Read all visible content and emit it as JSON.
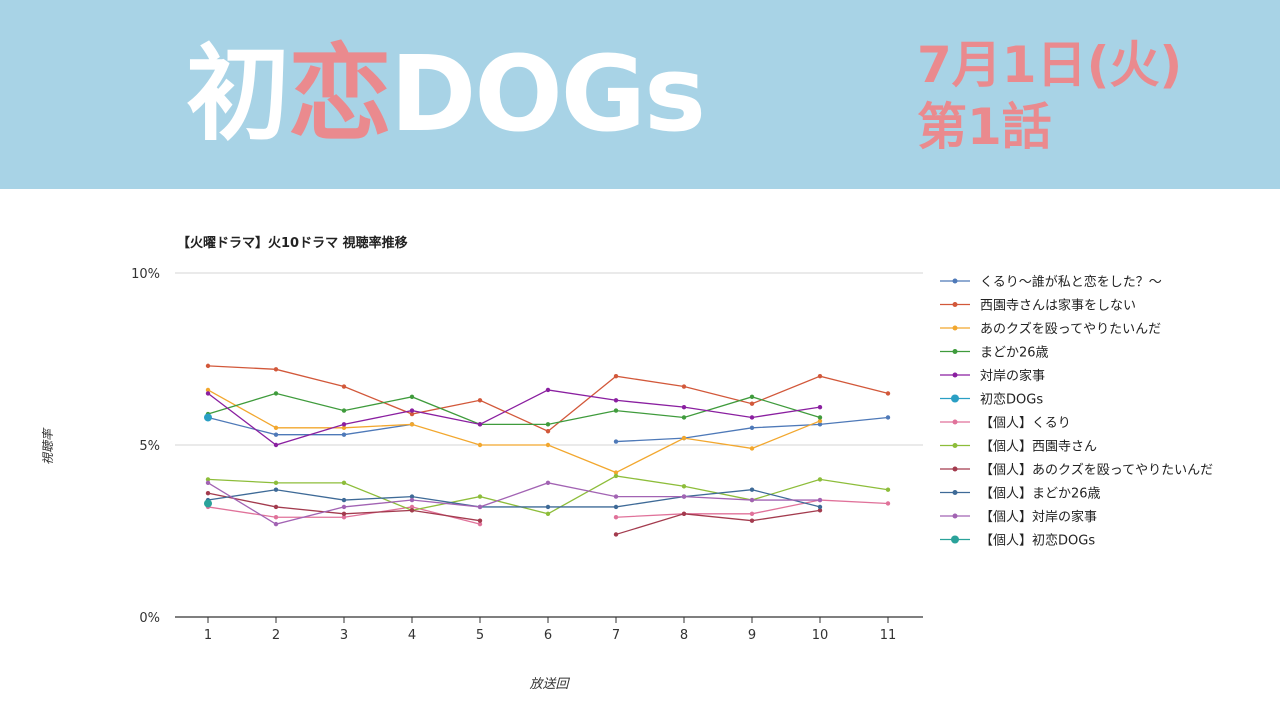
{
  "header": {
    "title_part1": "初",
    "title_part2": "恋",
    "title_part3": "DOGs",
    "date": "7月1日(火)",
    "episode": "第1話",
    "colors": {
      "banner": "#a8d3e6",
      "accent": "#ea8a8e",
      "title": "#ffffff"
    }
  },
  "chart_data": {
    "type": "line",
    "title": "【火曜ドラマ】火10ドラマ 視聴率推移",
    "xlabel": "放送回",
    "ylabel": "視聴率",
    "categories": [
      1,
      2,
      3,
      4,
      5,
      6,
      7,
      8,
      9,
      10,
      11
    ],
    "ylim": [
      0,
      10
    ],
    "yticks": [
      "0%",
      "5%",
      "10%"
    ],
    "grid": true,
    "legend_position": "right",
    "series": [
      {
        "name": "くるり〜誰が私と恋をした？〜",
        "color": "#4e79b8",
        "values": [
          5.8,
          5.3,
          5.3,
          5.6,
          null,
          null,
          5.1,
          5.2,
          5.5,
          5.6,
          5.8
        ]
      },
      {
        "name": "西園寺さんは家事をしない",
        "color": "#d2583a",
        "values": [
          7.3,
          7.2,
          6.7,
          5.9,
          6.3,
          5.4,
          7.0,
          6.7,
          6.2,
          7.0,
          6.5
        ]
      },
      {
        "name": "あのクズを殴ってやりたいんだ",
        "color": "#f2a72e",
        "values": [
          6.6,
          5.5,
          5.5,
          5.6,
          5.0,
          5.0,
          4.2,
          5.2,
          4.9,
          5.7,
          null
        ]
      },
      {
        "name": "まどか26歳",
        "color": "#3f9b3c",
        "values": [
          5.9,
          6.5,
          6.0,
          6.4,
          5.6,
          5.6,
          6.0,
          5.8,
          6.4,
          5.8,
          null
        ]
      },
      {
        "name": "対岸の家事",
        "color": "#8a1fa0",
        "values": [
          6.5,
          5.0,
          5.6,
          6.0,
          5.6,
          6.6,
          6.3,
          6.1,
          5.8,
          6.1,
          null
        ]
      },
      {
        "name": "初恋DOGs",
        "color": "#2a9fc4",
        "values": [
          5.8,
          null,
          null,
          null,
          null,
          null,
          null,
          null,
          null,
          null,
          null
        ]
      },
      {
        "name": "【個人】くるり",
        "color": "#e0729a",
        "values": [
          3.2,
          2.9,
          2.9,
          3.2,
          2.7,
          null,
          2.9,
          3.0,
          3.0,
          3.4,
          3.3
        ]
      },
      {
        "name": "【個人】西園寺さん",
        "color": "#8dbd3a",
        "values": [
          4.0,
          3.9,
          3.9,
          3.1,
          3.5,
          3.0,
          4.1,
          3.8,
          3.4,
          4.0,
          3.7
        ]
      },
      {
        "name": "【個人】あのクズを殴ってやりたいんだ",
        "color": "#a33b4e",
        "values": [
          3.6,
          3.2,
          3.0,
          3.1,
          2.8,
          null,
          2.4,
          3.0,
          2.8,
          3.1,
          null
        ]
      },
      {
        "name": "【個人】まどか26歳",
        "color": "#3e6a97",
        "values": [
          3.4,
          3.7,
          3.4,
          3.5,
          3.2,
          3.2,
          3.2,
          3.5,
          3.7,
          3.2,
          null
        ]
      },
      {
        "name": "【個人】対岸の家事",
        "color": "#a263b3",
        "values": [
          3.9,
          2.7,
          3.2,
          3.4,
          3.2,
          3.9,
          3.5,
          3.5,
          3.4,
          3.4,
          null
        ]
      },
      {
        "name": "【個人】初恋DOGs",
        "color": "#2aa29a",
        "values": [
          3.3,
          null,
          null,
          null,
          null,
          null,
          null,
          null,
          null,
          null,
          null
        ]
      }
    ]
  }
}
